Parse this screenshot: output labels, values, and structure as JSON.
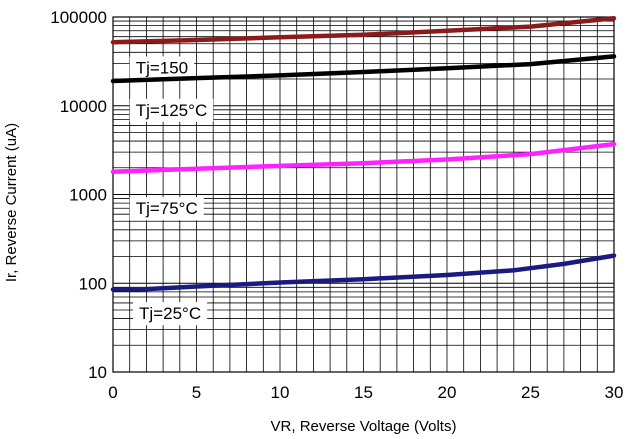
{
  "chart_data": {
    "type": "line",
    "xlabel": "VR, Reverse Voltage (Volts)",
    "ylabel": "Ir, Reverse Current (uA)",
    "xlim": [
      0,
      30
    ],
    "ylim": [
      10,
      100000
    ],
    "yscale": "log",
    "grid": true,
    "x_ticks": [
      "0",
      "5",
      "10",
      "15",
      "20",
      "25",
      "30"
    ],
    "y_ticks": [
      "10",
      "100",
      "1000",
      "10000",
      "100000"
    ],
    "series": [
      {
        "name": "Tj=25°C",
        "color": "#1a1a80",
        "x": [
          0,
          2,
          5,
          10,
          15,
          20,
          24,
          27,
          30
        ],
        "y": [
          85,
          86,
          92,
          102,
          111,
          124,
          140,
          165,
          205
        ]
      },
      {
        "name": "Tj=75°C",
        "color": "#ff22ff",
        "x": [
          0,
          5,
          10,
          15,
          20,
          25,
          30
        ],
        "y": [
          1800,
          1950,
          2100,
          2250,
          2480,
          2850,
          3700
        ]
      },
      {
        "name": "Tj=150",
        "color": "#000000",
        "x": [
          0,
          5,
          10,
          15,
          20,
          25,
          30
        ],
        "y": [
          19000,
          20500,
          22000,
          24000,
          26500,
          29500,
          36000
        ]
      },
      {
        "name": "",
        "color": "#8b1a1a",
        "x": [
          0,
          5,
          10,
          15,
          20,
          25,
          30
        ],
        "y": [
          52000,
          55000,
          59000,
          63000,
          70000,
          78000,
          97000
        ]
      }
    ],
    "annotations": [
      {
        "text": "Tj=150",
        "x": 1.0,
        "y": 27000
      },
      {
        "text": "Tj=125°C",
        "x": 1.0,
        "y": 9000
      },
      {
        "text": "Tj=75°C",
        "x": 1.0,
        "y": 700
      },
      {
        "text": "Tj=25°C",
        "x": 1.2,
        "y": 46
      }
    ]
  }
}
